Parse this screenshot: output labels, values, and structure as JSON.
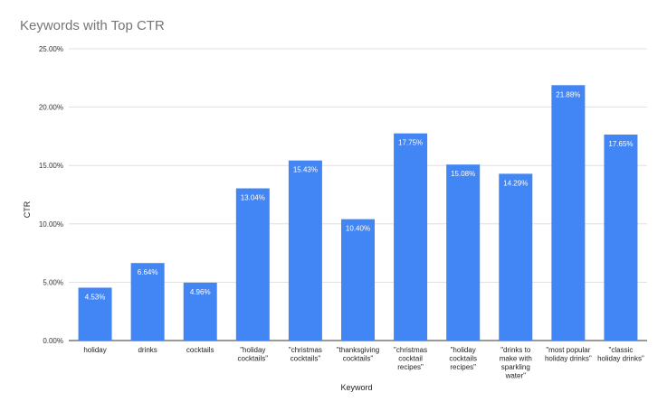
{
  "chart_data": {
    "type": "bar",
    "title": "Keywords with Top CTR",
    "xlabel": "Keyword",
    "ylabel": "CTR",
    "ylim": [
      0,
      25
    ],
    "yticks": [
      "0.00%",
      "5.00%",
      "10.00%",
      "15.00%",
      "20.00%",
      "25.00%"
    ],
    "grid": true,
    "legend": "none",
    "bar_color": "#4285f4",
    "categories": [
      "holiday",
      "drinks",
      "cocktails",
      "\"holiday cocktails\"",
      "\"christmas cocktails\"",
      "\"thanksgiving cocktails\"",
      "\"christmas cocktail recipes\"",
      "\"holiday cocktails recipes\"",
      "\"drinks to make with sparkling water\"",
      "\"most popular holiday drinks\"",
      "\"classic holiday drinks\""
    ],
    "category_lines": [
      [
        "holiday"
      ],
      [
        "drinks"
      ],
      [
        "cocktails"
      ],
      [
        "\"holiday",
        "cocktails\""
      ],
      [
        "\"christmas",
        "cocktails\""
      ],
      [
        "\"thanksgiving",
        "cocktails\""
      ],
      [
        "\"christmas",
        "cocktail",
        "recipes\""
      ],
      [
        "\"holiday",
        "cocktails",
        "recipes\""
      ],
      [
        "\"drinks to",
        "make with",
        "sparkling",
        "water\""
      ],
      [
        "\"most popular",
        "holiday drinks\""
      ],
      [
        "\"classic",
        "holiday drinks\""
      ]
    ],
    "values": [
      4.53,
      6.64,
      4.96,
      13.04,
      15.43,
      10.4,
      17.75,
      15.08,
      14.29,
      21.88,
      17.65
    ],
    "data_labels": [
      "4.53%",
      "6.64%",
      "4.96%",
      "13.04%",
      "15.43%",
      "10.40%",
      "17.75%",
      "15.08%",
      "14.29%",
      "21.88%",
      "17.65%"
    ]
  }
}
